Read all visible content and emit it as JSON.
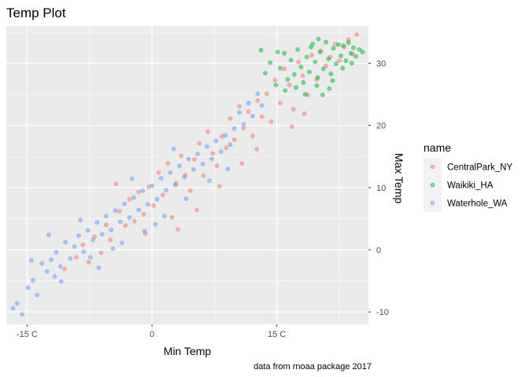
{
  "chart_data": {
    "type": "scatter",
    "title": "Temp Plot",
    "xlabel": "Min Temp",
    "ylabel": "Max Temp",
    "caption": "data from rnoaa package 2017",
    "x_unit_suffix": " C",
    "xlim": [
      -17.5,
      26
    ],
    "ylim": [
      -12,
      36
    ],
    "xticks": [
      -15,
      0,
      15
    ],
    "x_tick_labels": [
      "-15 C",
      "0",
      "15 C"
    ],
    "yticks": [
      -10,
      0,
      10,
      20,
      30
    ],
    "y_tick_labels": [
      "-10",
      "0",
      "10",
      "20",
      "30"
    ],
    "y_axis_position": "right",
    "grid": true,
    "point_alpha": 0.5,
    "legend": {
      "title": "name",
      "position": "right"
    },
    "series": [
      {
        "name": "CentralPark_NY",
        "color": "#F8766D",
        "points": [
          [
            -10.5,
            -3.1
          ],
          [
            -9.1,
            -1.2
          ],
          [
            -8.3,
            0.8
          ],
          [
            -7.6,
            -2.0
          ],
          [
            -6.9,
            2.1
          ],
          [
            -6.1,
            -0.5
          ],
          [
            -5.5,
            4.0
          ],
          [
            -5.0,
            1.6
          ],
          [
            -4.3,
            10.6
          ],
          [
            -3.9,
            6.2
          ],
          [
            -3.2,
            3.9
          ],
          [
            -2.7,
            8.1
          ],
          [
            -2.1,
            4.6
          ],
          [
            -1.6,
            9.3
          ],
          [
            -1.0,
            5.7
          ],
          [
            -0.4,
            10.1
          ],
          [
            0.2,
            7.1
          ],
          [
            0.8,
            12.4
          ],
          [
            1.3,
            8.8
          ],
          [
            1.9,
            13.9
          ],
          [
            2.4,
            5.2
          ],
          [
            2.9,
            10.7
          ],
          [
            3.5,
            15.1
          ],
          [
            4.0,
            12.0
          ],
          [
            4.6,
            9.5
          ],
          [
            5.1,
            14.5
          ],
          [
            5.7,
            17.1
          ],
          [
            6.2,
            11.9
          ],
          [
            6.7,
            19.0
          ],
          [
            7.3,
            15.5
          ],
          [
            7.8,
            13.5
          ],
          [
            8.4,
            18.2
          ],
          [
            8.9,
            16.4
          ],
          [
            9.4,
            21.1
          ],
          [
            9.9,
            17.7
          ],
          [
            10.5,
            23.1
          ],
          [
            11.0,
            19.6
          ],
          [
            11.6,
            22.2
          ],
          [
            12.1,
            18.3
          ],
          [
            12.7,
            24.0
          ],
          [
            13.2,
            21.4
          ],
          [
            13.8,
            25.1
          ],
          [
            14.3,
            20.6
          ],
          [
            14.8,
            27.3
          ],
          [
            15.4,
            23.6
          ],
          [
            15.9,
            29.1
          ],
          [
            16.5,
            26.5
          ],
          [
            17.0,
            22.6
          ],
          [
            17.6,
            30.2
          ],
          [
            18.1,
            28.0
          ],
          [
            18.7,
            24.9
          ],
          [
            19.2,
            31.3
          ],
          [
            19.8,
            27.4
          ],
          [
            20.3,
            32.0
          ],
          [
            20.9,
            29.6
          ],
          [
            21.4,
            31.0
          ],
          [
            22.0,
            33.1
          ],
          [
            22.5,
            30.4
          ],
          [
            23.1,
            32.6
          ],
          [
            23.6,
            33.8
          ],
          [
            24.1,
            31.5
          ],
          [
            24.6,
            34.6
          ],
          [
            5.4,
            6.4
          ],
          [
            8.1,
            10.2
          ],
          [
            10.8,
            13.9
          ],
          [
            16.8,
            19.8
          ],
          [
            3.1,
            3.3
          ],
          [
            -0.8,
            2.6
          ],
          [
            12.6,
            16.2
          ],
          [
            18.3,
            21.9
          ]
        ]
      },
      {
        "name": "Waikiki_HA",
        "color": "#00BA38",
        "points": [
          [
            13.6,
            28.4
          ],
          [
            14.2,
            30.1
          ],
          [
            14.9,
            26.5
          ],
          [
            15.4,
            29.2
          ],
          [
            15.9,
            31.6
          ],
          [
            16.3,
            27.4
          ],
          [
            16.7,
            30.5
          ],
          [
            17.1,
            28.2
          ],
          [
            17.5,
            32.2
          ],
          [
            17.9,
            29.4
          ],
          [
            18.2,
            26.9
          ],
          [
            18.6,
            31.0
          ],
          [
            18.9,
            28.6
          ],
          [
            19.3,
            33.1
          ],
          [
            19.6,
            30.2
          ],
          [
            19.9,
            27.7
          ],
          [
            20.2,
            31.8
          ],
          [
            20.6,
            29.1
          ],
          [
            20.9,
            33.4
          ],
          [
            21.2,
            30.7
          ],
          [
            21.5,
            28.3
          ],
          [
            21.8,
            32.4
          ],
          [
            22.1,
            29.9
          ],
          [
            22.4,
            33.0
          ],
          [
            22.7,
            31.2
          ],
          [
            23.0,
            32.8
          ],
          [
            23.3,
            30.4
          ],
          [
            23.6,
            33.3
          ],
          [
            23.9,
            31.6
          ],
          [
            24.2,
            32.5
          ],
          [
            24.5,
            31.1
          ],
          [
            24.9,
            32.2
          ],
          [
            25.3,
            31.8
          ],
          [
            16.0,
            25.6
          ],
          [
            17.3,
            26.1
          ],
          [
            18.4,
            25.0
          ],
          [
            19.8,
            26.4
          ],
          [
            20.5,
            24.9
          ],
          [
            21.7,
            27.2
          ],
          [
            15.1,
            31.8
          ],
          [
            22.9,
            29.2
          ],
          [
            24.0,
            30.0
          ],
          [
            13.1,
            32.1
          ],
          [
            19.1,
            32.6
          ],
          [
            20.0,
            33.9
          ],
          [
            21.3,
            25.9
          ]
        ]
      },
      {
        "name": "Waterhole_WA",
        "color": "#619CFF",
        "points": [
          [
            -16.7,
            -9.4
          ],
          [
            -16.2,
            -8.6
          ],
          [
            -15.6,
            -10.4
          ],
          [
            -14.9,
            -6.1
          ],
          [
            -14.3,
            -4.9
          ],
          [
            -13.8,
            -7.3
          ],
          [
            -13.2,
            -2.2
          ],
          [
            -12.6,
            -3.5
          ],
          [
            -12.1,
            -1.6
          ],
          [
            -11.5,
            -0.4
          ],
          [
            -11.0,
            -2.7
          ],
          [
            -10.4,
            1.2
          ],
          [
            -9.8,
            -1.4
          ],
          [
            -9.3,
            0.5
          ],
          [
            -8.8,
            2.3
          ],
          [
            -8.2,
            -0.3
          ],
          [
            -7.7,
            3.1
          ],
          [
            -7.1,
            1.6
          ],
          [
            -6.6,
            4.4
          ],
          [
            -6.0,
            2.5
          ],
          [
            -5.5,
            5.4
          ],
          [
            -4.9,
            3.2
          ],
          [
            -4.4,
            6.3
          ],
          [
            -3.8,
            4.5
          ],
          [
            -3.3,
            7.4
          ],
          [
            -2.7,
            5.2
          ],
          [
            -2.2,
            8.4
          ],
          [
            -1.6,
            6.4
          ],
          [
            -1.1,
            9.5
          ],
          [
            -0.5,
            7.3
          ],
          [
            0.0,
            10.3
          ],
          [
            0.6,
            8.1
          ],
          [
            1.1,
            11.5
          ],
          [
            1.7,
            9.6
          ],
          [
            2.2,
            12.4
          ],
          [
            2.8,
            10.4
          ],
          [
            3.3,
            13.5
          ],
          [
            3.9,
            11.7
          ],
          [
            4.4,
            14.6
          ],
          [
            5.0,
            12.9
          ],
          [
            5.5,
            15.4
          ],
          [
            6.1,
            13.8
          ],
          [
            6.6,
            16.6
          ],
          [
            7.2,
            14.6
          ],
          [
            7.7,
            17.5
          ],
          [
            8.3,
            15.8
          ],
          [
            8.8,
            18.4
          ],
          [
            9.4,
            16.9
          ],
          [
            9.9,
            19.5
          ],
          [
            10.5,
            22.1
          ],
          [
            11.0,
            20.2
          ],
          [
            11.6,
            23.6
          ],
          [
            12.1,
            21.5
          ],
          [
            12.7,
            25.1
          ],
          [
            13.2,
            23.2
          ],
          [
            -14.5,
            -1.7
          ],
          [
            -10.9,
            -5.1
          ],
          [
            -6.4,
            -2.9
          ],
          [
            -3.6,
            1.1
          ],
          [
            -0.9,
            3.0
          ],
          [
            1.5,
            5.4
          ],
          [
            4.1,
            8.2
          ],
          [
            -12.4,
            2.4
          ],
          [
            -8.6,
            4.8
          ],
          [
            -2.4,
            11.4
          ],
          [
            2.6,
            16.2
          ],
          [
            -4.7,
            0.2
          ],
          [
            0.4,
            4.1
          ],
          [
            6.9,
            11.1
          ],
          [
            9.1,
            13.0
          ],
          [
            -11.7,
            -4.3
          ],
          [
            -7.4,
            -1.2
          ]
        ]
      }
    ]
  }
}
